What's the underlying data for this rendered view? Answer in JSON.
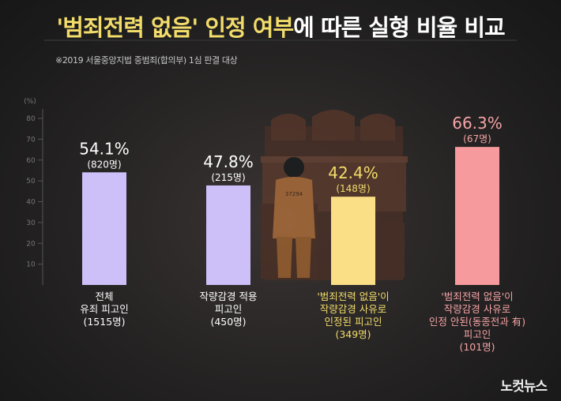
{
  "title": {
    "part1": "'범죄전력 없음' 인정 여부",
    "part2": "에 따른 실형 비율 비교"
  },
  "subtitle": "※2019 서울중앙지법 중범죄(합의부) 1심 판결 대상",
  "watermark": "노컷뉴스",
  "prisoner_number": "37294",
  "colors": {
    "purple_bar": "#cdc0f8",
    "yellow_bar": "#fbdf86",
    "pink_bar": "#f69a9d",
    "white_label": "#ffffff",
    "yellow_label": "#f2dc6a",
    "pink_label": "#f5a3a6",
    "title_highlight": "#f2dc6a"
  },
  "chart_data": {
    "type": "bar",
    "unit_label": "(%)",
    "ylim": [
      0,
      80
    ],
    "yticks": [
      10,
      20,
      30,
      40,
      50,
      60,
      70,
      80
    ],
    "grid": false,
    "categories": [
      [
        "전체",
        "유죄 피고인",
        "(1515명)"
      ],
      [
        "작량감경 적용",
        "피고인",
        "(450명)"
      ],
      [
        "'범죄전력 없음'이",
        "작량감경 사유로",
        "인정된 피고인",
        "(349명)"
      ],
      [
        "'범죄전력 없음'이",
        "작량감경 사유로",
        "인정 안된(동종전과 有)",
        "피고인",
        "(101명)"
      ]
    ],
    "values": [
      54.1,
      47.8,
      42.4,
      66.3
    ],
    "value_labels": [
      "54.1%",
      "47.8%",
      "42.4%",
      "66.3%"
    ],
    "count_labels": [
      "(820명)",
      "(215명)",
      "(148명)",
      "(67명)"
    ],
    "bar_colors": [
      "#cdc0f8",
      "#cdc0f8",
      "#fbdf86",
      "#f69a9d"
    ],
    "label_colors": [
      "#ffffff",
      "#ffffff",
      "#f2dc6a",
      "#f5a3a6"
    ]
  }
}
